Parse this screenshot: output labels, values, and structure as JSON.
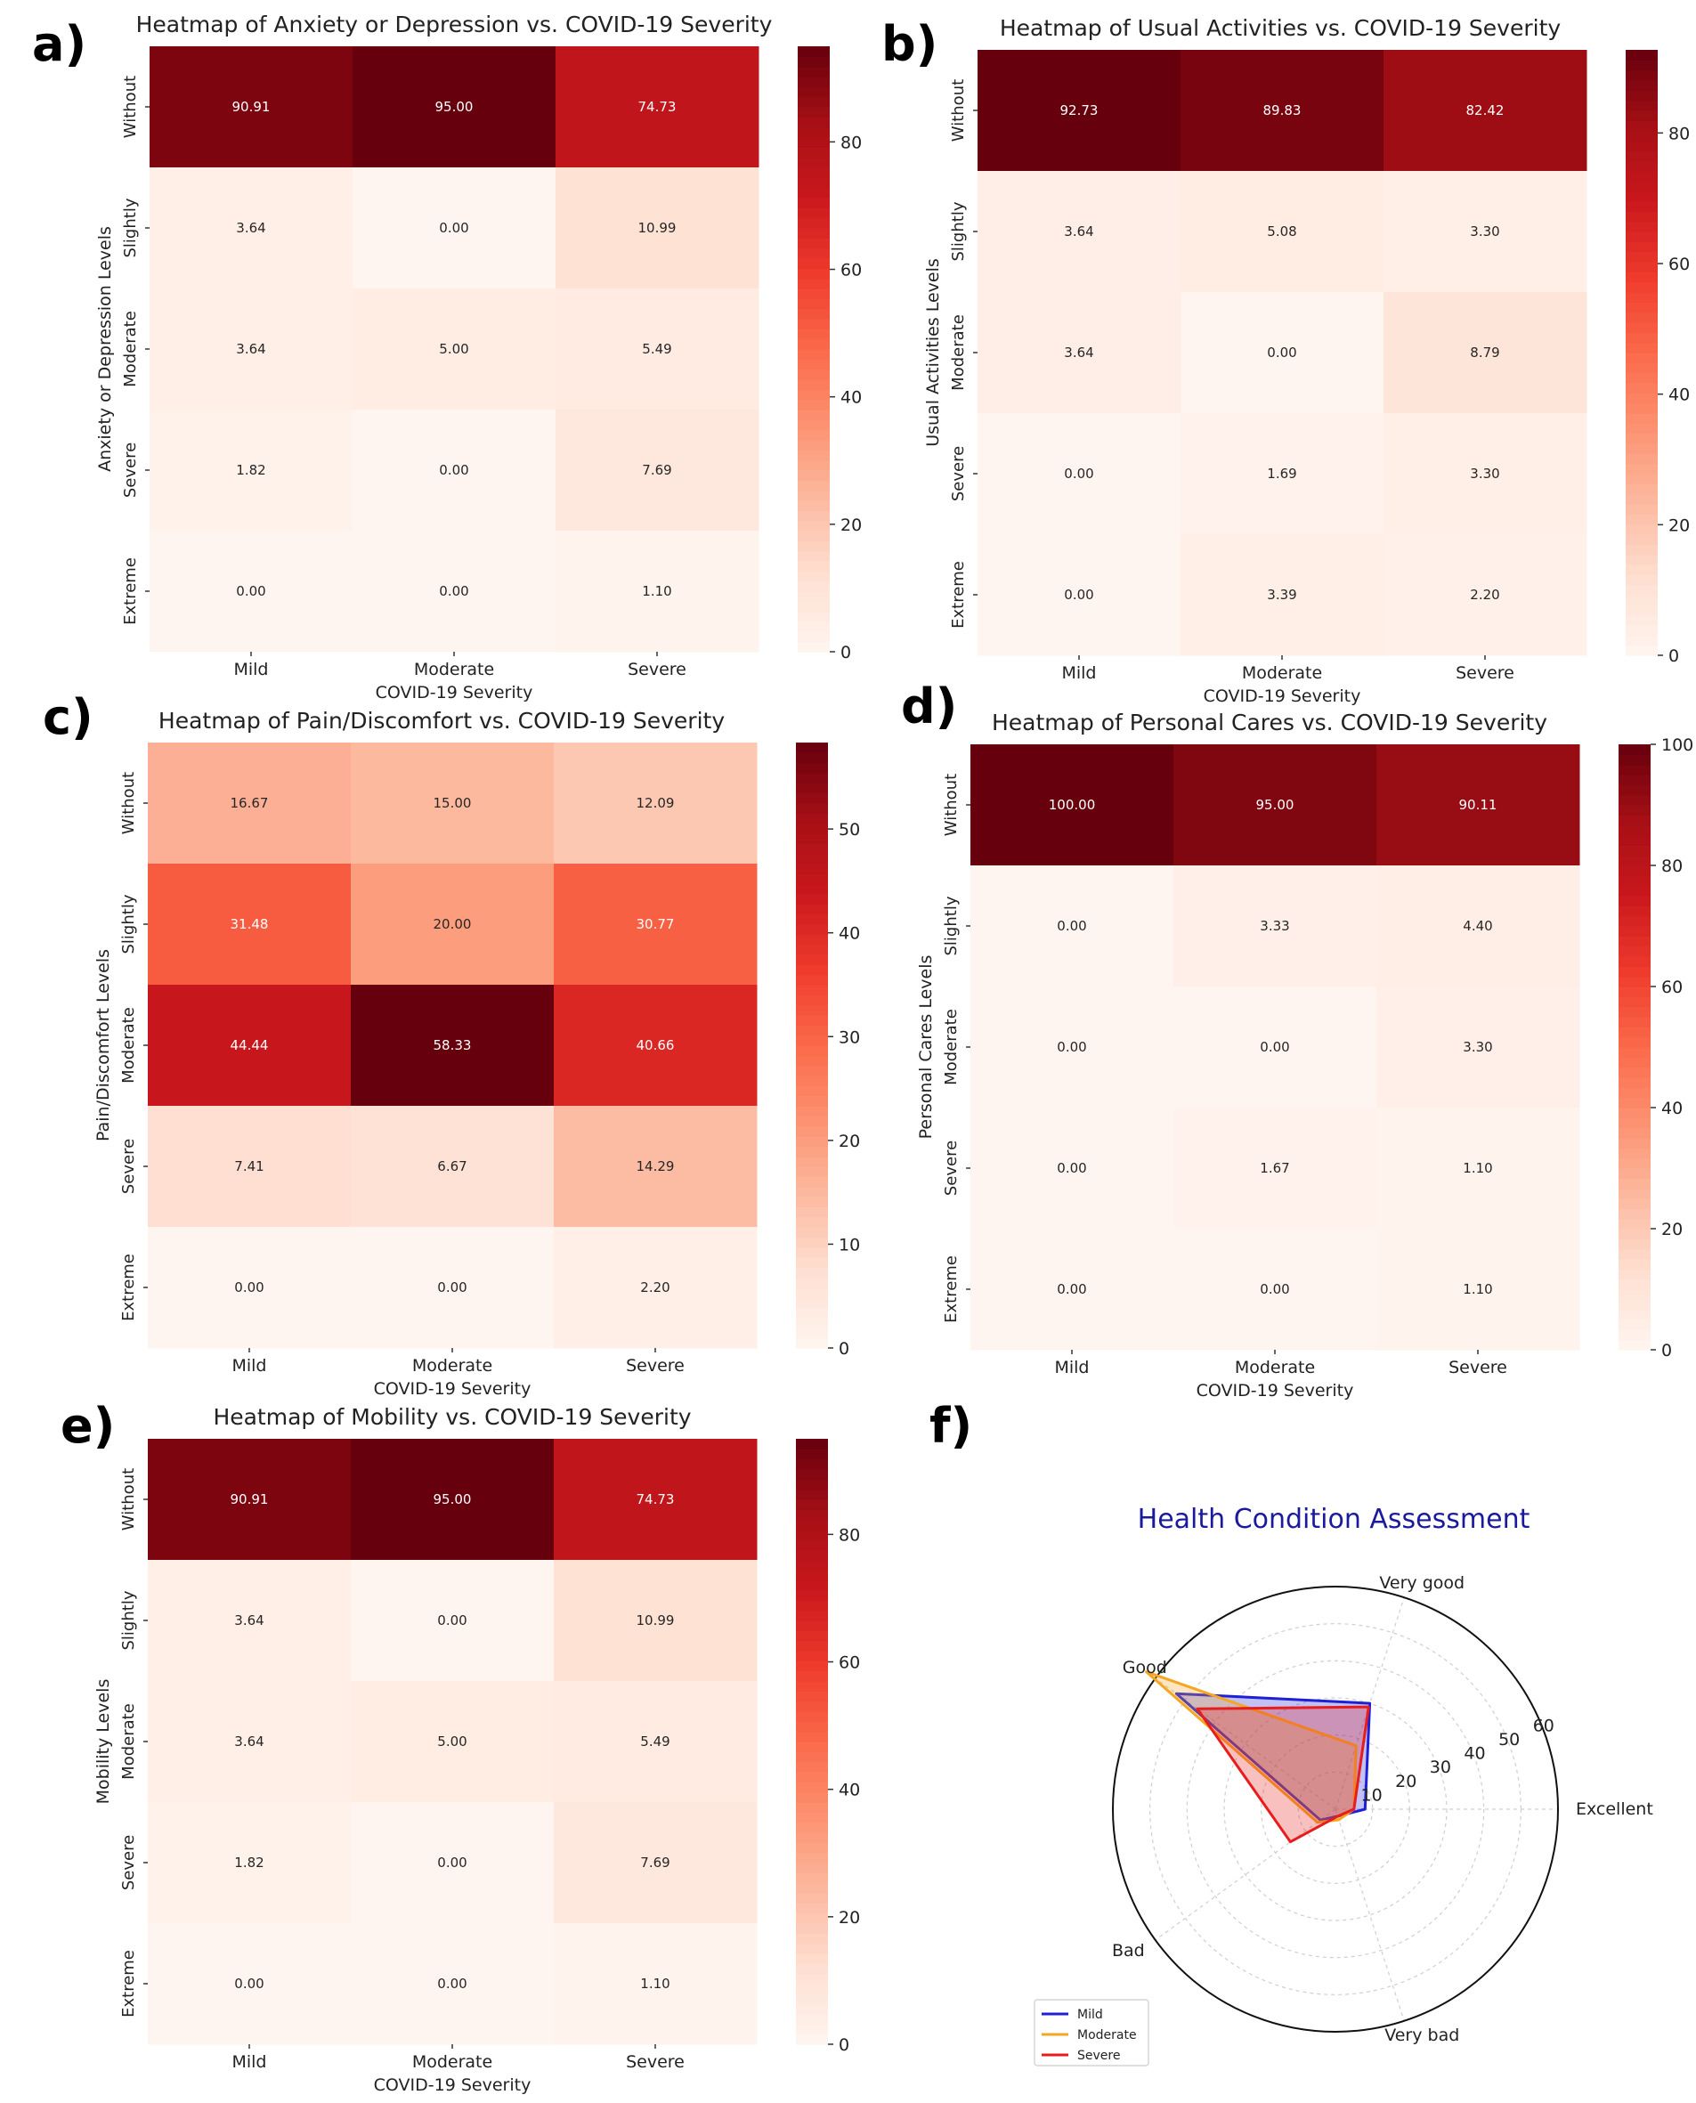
{
  "chart_data": [
    {
      "panel": "a)",
      "type": "heatmap",
      "title": "Heatmap of Anxiety or Depression vs. COVID-19 Severity",
      "xlabel": "COVID-19 Severity",
      "ylabel": "Anxiety or Depression Levels",
      "x": [
        "Mild",
        "Moderate",
        "Severe"
      ],
      "y": [
        "Without",
        "Slightly",
        "Moderate",
        "Severe",
        "Extreme"
      ],
      "values": [
        [
          90.91,
          95.0,
          74.73
        ],
        [
          3.64,
          0.0,
          10.99
        ],
        [
          3.64,
          5.0,
          5.49
        ],
        [
          1.82,
          0.0,
          7.69
        ],
        [
          0.0,
          0.0,
          1.1
        ]
      ],
      "labels": [
        [
          "90.91",
          "95.00",
          "74.73"
        ],
        [
          "3.64",
          "0.00",
          "10.99"
        ],
        [
          "3.64",
          "5.00",
          "5.49"
        ],
        [
          "1.82",
          "0.00",
          "7.69"
        ],
        [
          "0.00",
          "0.00",
          "1.10"
        ]
      ],
      "vmax": 95,
      "colorbar_ticks": [
        0,
        20,
        40,
        60,
        80
      ]
    },
    {
      "panel": "b)",
      "type": "heatmap",
      "title": "Heatmap of Usual Activities vs. COVID-19 Severity",
      "xlabel": "COVID-19 Severity",
      "ylabel": "Usual Activities Levels",
      "x": [
        "Mild",
        "Moderate",
        "Severe"
      ],
      "y": [
        "Without",
        "Slightly",
        "Moderate",
        "Severe",
        "Extreme"
      ],
      "values": [
        [
          92.73,
          89.83,
          82.42
        ],
        [
          3.64,
          5.08,
          3.3
        ],
        [
          3.64,
          0.0,
          8.79
        ],
        [
          0.0,
          1.69,
          3.3
        ],
        [
          0.0,
          3.39,
          2.2
        ]
      ],
      "labels": [
        [
          "92.73",
          "89.83",
          "82.42"
        ],
        [
          "3.64",
          "5.08",
          "3.30"
        ],
        [
          "3.64",
          "0.00",
          "8.79"
        ],
        [
          "0.00",
          "1.69",
          "3.30"
        ],
        [
          "0.00",
          "3.39",
          "2.20"
        ]
      ],
      "vmax": 92.73,
      "colorbar_ticks": [
        0,
        20,
        40,
        60,
        80
      ]
    },
    {
      "panel": "c)",
      "type": "heatmap",
      "title": "Heatmap of Pain/Discomfort vs. COVID-19 Severity",
      "xlabel": "COVID-19 Severity",
      "ylabel": "Pain/Discomfort Levels",
      "x": [
        "Mild",
        "Moderate",
        "Severe"
      ],
      "y": [
        "Without",
        "Slightly",
        "Moderate",
        "Severe",
        "Extreme"
      ],
      "values": [
        [
          16.67,
          15.0,
          12.09
        ],
        [
          31.48,
          20.0,
          30.77
        ],
        [
          44.44,
          58.33,
          40.66
        ],
        [
          7.41,
          6.67,
          14.29
        ],
        [
          0.0,
          0.0,
          2.2
        ]
      ],
      "labels": [
        [
          "16.67",
          "15.00",
          "12.09"
        ],
        [
          "31.48",
          "20.00",
          "30.77"
        ],
        [
          "44.44",
          "58.33",
          "40.66"
        ],
        [
          "7.41",
          "6.67",
          "14.29"
        ],
        [
          "0.00",
          "0.00",
          "2.20"
        ]
      ],
      "vmax": 58.33,
      "colorbar_ticks": [
        0,
        10,
        20,
        30,
        40,
        50
      ]
    },
    {
      "panel": "d)",
      "type": "heatmap",
      "title": "Heatmap of Personal Cares vs. COVID-19 Severity",
      "xlabel": "COVID-19 Severity",
      "ylabel": "Personal Cares Levels",
      "x": [
        "Mild",
        "Moderate",
        "Severe"
      ],
      "y": [
        "Without",
        "Slightly",
        "Moderate",
        "Severe",
        "Extreme"
      ],
      "values": [
        [
          100.0,
          95.0,
          90.11
        ],
        [
          0.0,
          3.33,
          4.4
        ],
        [
          0.0,
          0.0,
          3.3
        ],
        [
          0.0,
          1.67,
          1.1
        ],
        [
          0.0,
          0.0,
          1.1
        ]
      ],
      "labels": [
        [
          "100.00",
          "95.00",
          "90.11"
        ],
        [
          "0.00",
          "3.33",
          "4.40"
        ],
        [
          "0.00",
          "0.00",
          "3.30"
        ],
        [
          "0.00",
          "1.67",
          "1.10"
        ],
        [
          "0.00",
          "0.00",
          "1.10"
        ]
      ],
      "vmax": 100,
      "colorbar_ticks": [
        0,
        20,
        40,
        60,
        80,
        100
      ]
    },
    {
      "panel": "e)",
      "type": "heatmap",
      "title": "Heatmap of Mobility vs. COVID-19 Severity",
      "xlabel": "COVID-19 Severity",
      "ylabel": "Mobility Levels",
      "x": [
        "Mild",
        "Moderate",
        "Severe"
      ],
      "y": [
        "Without",
        "Slightly",
        "Moderate",
        "Severe",
        "Extreme"
      ],
      "values": [
        [
          90.91,
          95.0,
          74.73
        ],
        [
          3.64,
          0.0,
          10.99
        ],
        [
          3.64,
          5.0,
          5.49
        ],
        [
          1.82,
          0.0,
          7.69
        ],
        [
          0.0,
          0.0,
          1.1
        ]
      ],
      "labels": [
        [
          "90.91",
          "95.00",
          "74.73"
        ],
        [
          "3.64",
          "0.00",
          "10.99"
        ],
        [
          "3.64",
          "5.00",
          "5.49"
        ],
        [
          "1.82",
          "0.00",
          "7.69"
        ],
        [
          "0.00",
          "0.00",
          "1.10"
        ]
      ],
      "vmax": 95,
      "colorbar_ticks": [
        0,
        20,
        40,
        60,
        80
      ]
    },
    {
      "panel": "f)",
      "type": "radar",
      "title": "Health Condition Assessment",
      "categories": [
        "Excellent",
        "Very good",
        "Good",
        "Bad",
        "Very bad"
      ],
      "rmax": 60,
      "radial_ticks": [
        10,
        20,
        30,
        40,
        50,
        60
      ],
      "series": [
        {
          "name": "Mild",
          "color": "#1f1fd6",
          "values": [
            8,
            30,
            53,
            5,
            2
          ]
        },
        {
          "name": "Moderate",
          "color": "#f5a623",
          "values": [
            5,
            18,
            63,
            6,
            3
          ]
        },
        {
          "name": "Severe",
          "color": "#e81c1c",
          "values": [
            5,
            29,
            46,
            15,
            2
          ]
        }
      ],
      "legend_position": "lower-left"
    }
  ]
}
